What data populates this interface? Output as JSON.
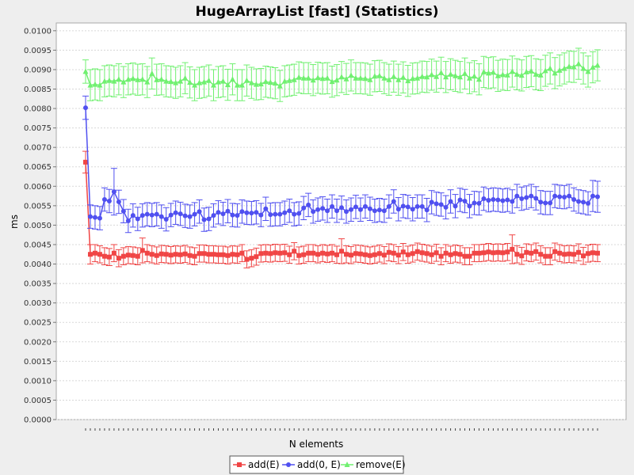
{
  "chart_data": {
    "type": "line",
    "title": "HugeArrayList [fast] (Statistics)",
    "xlabel": "N elements",
    "ylabel": "ms",
    "ylim": [
      0,
      0.0102
    ],
    "yticks": [
      "0.0000",
      "0.0005",
      "0.0010",
      "0.0015",
      "0.0020",
      "0.0025",
      "0.0030",
      "0.0035",
      "0.0040",
      "0.0045",
      "0.0050",
      "0.0055",
      "0.0060",
      "0.0065",
      "0.0070",
      "0.0075",
      "0.0080",
      "0.0085",
      "0.0090",
      "0.0095",
      "0.0100"
    ],
    "grid": true,
    "legend": "bottom",
    "x_count": 109,
    "series": [
      {
        "name": "add(E)",
        "color": "#f04545",
        "marker": "square",
        "values": [
          0.00662,
          0.00425,
          0.00428,
          0.00425,
          0.0042,
          0.00418,
          0.00428,
          0.00415,
          0.0042,
          0.00423,
          0.00422,
          0.0042,
          0.00435,
          0.00428,
          0.00425,
          0.00422,
          0.00426,
          0.00425,
          0.00423,
          0.00425,
          0.00424,
          0.00426,
          0.00422,
          0.0042,
          0.00427,
          0.00427,
          0.00425,
          0.00425,
          0.00424,
          0.00424,
          0.00422,
          0.00425,
          0.00424,
          0.00428,
          0.00412,
          0.00415,
          0.00419,
          0.00427,
          0.00428,
          0.00427,
          0.00429,
          0.00428,
          0.00429,
          0.00424,
          0.00433,
          0.00422,
          0.00424,
          0.00428,
          0.00428,
          0.00425,
          0.00428,
          0.00426,
          0.00428,
          0.00424,
          0.00433,
          0.00425,
          0.00423,
          0.00427,
          0.00426,
          0.00424,
          0.00422,
          0.00424,
          0.00427,
          0.00423,
          0.0043,
          0.00428,
          0.00423,
          0.00431,
          0.00424,
          0.00427,
          0.00432,
          0.00429,
          0.00427,
          0.00424,
          0.00429,
          0.0042,
          0.00428,
          0.00424,
          0.00427,
          0.00425,
          0.0042,
          0.0042,
          0.00428,
          0.00428,
          0.00429,
          0.00431,
          0.00429,
          0.0043,
          0.00429,
          0.00431,
          0.00438,
          0.00425,
          0.00421,
          0.0043,
          0.00428,
          0.00432,
          0.00425,
          0.0042,
          0.0042,
          0.00432,
          0.00428,
          0.00425,
          0.00426,
          0.00425,
          0.0043,
          0.00421,
          0.00427,
          0.00429,
          0.00428
        ],
        "error": [
          0.00028,
          0.00025,
          0.00022,
          0.00022,
          0.00022,
          0.00022,
          0.00022,
          0.00022,
          0.00022,
          0.00022,
          0.00022,
          0.00022,
          0.00032,
          0.00022,
          0.00022,
          0.00022,
          0.00022,
          0.00022,
          0.00022,
          0.00022,
          0.00022,
          0.00022,
          0.00022,
          0.00022,
          0.00022,
          0.00022,
          0.00022,
          0.00022,
          0.00022,
          0.00022,
          0.00022,
          0.00022,
          0.00022,
          0.00022,
          0.00022,
          0.00022,
          0.00022,
          0.00022,
          0.00022,
          0.00022,
          0.00022,
          0.00022,
          0.00022,
          0.00022,
          0.00022,
          0.00022,
          0.00022,
          0.00022,
          0.00022,
          0.00022,
          0.00022,
          0.00022,
          0.00022,
          0.00022,
          0.00032,
          0.00022,
          0.00022,
          0.00022,
          0.00022,
          0.00022,
          0.00022,
          0.00022,
          0.00022,
          0.00022,
          0.00022,
          0.00022,
          0.00022,
          0.00022,
          0.00022,
          0.00022,
          0.00022,
          0.00022,
          0.00022,
          0.00022,
          0.00022,
          0.00022,
          0.00022,
          0.00022,
          0.00022,
          0.00022,
          0.00022,
          0.00022,
          0.00022,
          0.00022,
          0.00022,
          0.00022,
          0.00022,
          0.00022,
          0.00022,
          0.00022,
          0.00037,
          0.00022,
          0.00022,
          0.00022,
          0.00022,
          0.00022,
          0.00022,
          0.00022,
          0.00022,
          0.00022,
          0.00022,
          0.00022,
          0.00022,
          0.00022,
          0.00022,
          0.00022,
          0.00022,
          0.00022,
          0.00022
        ]
      },
      {
        "name": "add(0, E)",
        "color": "#5050f0",
        "marker": "circle",
        "values": [
          0.00802,
          0.00522,
          0.0052,
          0.00518,
          0.00566,
          0.00562,
          0.00586,
          0.0056,
          0.00536,
          0.00511,
          0.00525,
          0.00516,
          0.00525,
          0.00528,
          0.00526,
          0.00528,
          0.00522,
          0.00515,
          0.00526,
          0.00532,
          0.00529,
          0.00524,
          0.00522,
          0.00528,
          0.00535,
          0.00514,
          0.00516,
          0.00525,
          0.00533,
          0.00529,
          0.00536,
          0.00526,
          0.00525,
          0.00535,
          0.00532,
          0.00531,
          0.00533,
          0.00526,
          0.00542,
          0.00527,
          0.00528,
          0.00528,
          0.00532,
          0.00537,
          0.00528,
          0.0053,
          0.00544,
          0.00552,
          0.00535,
          0.0054,
          0.00543,
          0.00537,
          0.00548,
          0.00537,
          0.00545,
          0.00535,
          0.0054,
          0.00547,
          0.0054,
          0.00548,
          0.00542,
          0.00537,
          0.00539,
          0.00537,
          0.00548,
          0.00561,
          0.00541,
          0.00549,
          0.00547,
          0.00541,
          0.00548,
          0.00548,
          0.00539,
          0.00559,
          0.00555,
          0.00553,
          0.00546,
          0.00561,
          0.00549,
          0.00565,
          0.00562,
          0.00549,
          0.00557,
          0.00556,
          0.00568,
          0.00564,
          0.00566,
          0.00565,
          0.00563,
          0.00565,
          0.00561,
          0.00575,
          0.00568,
          0.00571,
          0.00575,
          0.00569,
          0.00559,
          0.00557,
          0.00557,
          0.00575,
          0.00573,
          0.00572,
          0.00575,
          0.00566,
          0.00561,
          0.00559,
          0.00556,
          0.00575,
          0.00573
        ],
        "error": [
          0.0003,
          0.0003,
          0.0003,
          0.0003,
          0.0003,
          0.0003,
          0.0006,
          0.0003,
          0.0003,
          0.0003,
          0.0003,
          0.0003,
          0.0003,
          0.0003,
          0.0003,
          0.0003,
          0.0003,
          0.0003,
          0.0003,
          0.0003,
          0.0003,
          0.0003,
          0.0003,
          0.0003,
          0.0003,
          0.0003,
          0.0003,
          0.0003,
          0.0003,
          0.0003,
          0.0003,
          0.0003,
          0.0003,
          0.0003,
          0.0003,
          0.0003,
          0.0003,
          0.0003,
          0.0003,
          0.0003,
          0.0003,
          0.0003,
          0.0003,
          0.0003,
          0.0003,
          0.0003,
          0.0003,
          0.0003,
          0.0003,
          0.0003,
          0.0003,
          0.0003,
          0.0003,
          0.0003,
          0.0003,
          0.0003,
          0.0003,
          0.0003,
          0.0003,
          0.0003,
          0.0003,
          0.0003,
          0.0003,
          0.0003,
          0.0003,
          0.0003,
          0.0003,
          0.0003,
          0.0003,
          0.0003,
          0.0003,
          0.0003,
          0.0003,
          0.0003,
          0.0003,
          0.0003,
          0.0003,
          0.0003,
          0.0003,
          0.0003,
          0.0003,
          0.0003,
          0.0003,
          0.0003,
          0.0003,
          0.0003,
          0.0003,
          0.0003,
          0.0003,
          0.0003,
          0.0003,
          0.0003,
          0.0003,
          0.0003,
          0.0003,
          0.0003,
          0.0003,
          0.0003,
          0.0003,
          0.0003,
          0.0003,
          0.0003,
          0.0003,
          0.0003,
          0.0003,
          0.0003,
          0.0003,
          0.0004,
          0.0004
        ]
      },
      {
        "name": "remove(E)",
        "color": "#70f070",
        "marker": "triangle",
        "values": [
          0.00895,
          0.0086,
          0.00862,
          0.0086,
          0.0087,
          0.00872,
          0.0087,
          0.00875,
          0.00868,
          0.00875,
          0.00877,
          0.00874,
          0.00875,
          0.00868,
          0.0089,
          0.00874,
          0.00875,
          0.0087,
          0.00869,
          0.00866,
          0.0087,
          0.00878,
          0.00867,
          0.0086,
          0.00866,
          0.00868,
          0.00872,
          0.0086,
          0.00868,
          0.0087,
          0.00861,
          0.00875,
          0.0086,
          0.0086,
          0.00872,
          0.00866,
          0.00862,
          0.00863,
          0.00869,
          0.00867,
          0.00865,
          0.00858,
          0.0087,
          0.00872,
          0.00874,
          0.0088,
          0.00878,
          0.00878,
          0.00873,
          0.00879,
          0.00877,
          0.00878,
          0.00869,
          0.00873,
          0.00881,
          0.00876,
          0.00885,
          0.00878,
          0.00878,
          0.00877,
          0.00874,
          0.00883,
          0.00884,
          0.00878,
          0.00874,
          0.00882,
          0.00874,
          0.0088,
          0.00871,
          0.00877,
          0.00878,
          0.00882,
          0.00881,
          0.00887,
          0.00882,
          0.00892,
          0.00881,
          0.00888,
          0.00884,
          0.00881,
          0.0089,
          0.00878,
          0.00883,
          0.00875,
          0.00894,
          0.00891,
          0.00893,
          0.00884,
          0.00887,
          0.00886,
          0.00895,
          0.00888,
          0.00885,
          0.00894,
          0.00896,
          0.00888,
          0.00886,
          0.00897,
          0.00903,
          0.00891,
          0.00898,
          0.00903,
          0.00908,
          0.00907,
          0.00915,
          0.00903,
          0.00895,
          0.00906,
          0.00911
        ],
        "error": [
          0.0003,
          0.0004,
          0.0004,
          0.0004,
          0.0004,
          0.0004,
          0.0004,
          0.0004,
          0.0004,
          0.0004,
          0.0004,
          0.0004,
          0.0004,
          0.0004,
          0.0004,
          0.0004,
          0.0004,
          0.0004,
          0.0004,
          0.0004,
          0.0004,
          0.0004,
          0.0004,
          0.0004,
          0.0004,
          0.0004,
          0.0004,
          0.0004,
          0.0004,
          0.0004,
          0.0004,
          0.0004,
          0.0004,
          0.0004,
          0.0004,
          0.0004,
          0.0004,
          0.0004,
          0.0004,
          0.0004,
          0.0004,
          0.0004,
          0.0004,
          0.0004,
          0.0004,
          0.0004,
          0.0004,
          0.0004,
          0.0004,
          0.0004,
          0.0004,
          0.0004,
          0.0004,
          0.0004,
          0.0004,
          0.0004,
          0.0004,
          0.0004,
          0.0004,
          0.0004,
          0.0004,
          0.0004,
          0.0004,
          0.0004,
          0.0004,
          0.0004,
          0.0004,
          0.0004,
          0.0004,
          0.0004,
          0.0004,
          0.0004,
          0.0004,
          0.0004,
          0.0004,
          0.0004,
          0.0004,
          0.0004,
          0.0004,
          0.0004,
          0.0004,
          0.0004,
          0.0004,
          0.0004,
          0.0004,
          0.0004,
          0.0004,
          0.0004,
          0.0004,
          0.0004,
          0.0004,
          0.0004,
          0.0004,
          0.0004,
          0.0004,
          0.0004,
          0.0004,
          0.0004,
          0.0004,
          0.0004,
          0.0004,
          0.0004,
          0.0004,
          0.0004,
          0.0004,
          0.0004,
          0.0004,
          0.0004,
          0.0004
        ]
      }
    ]
  }
}
